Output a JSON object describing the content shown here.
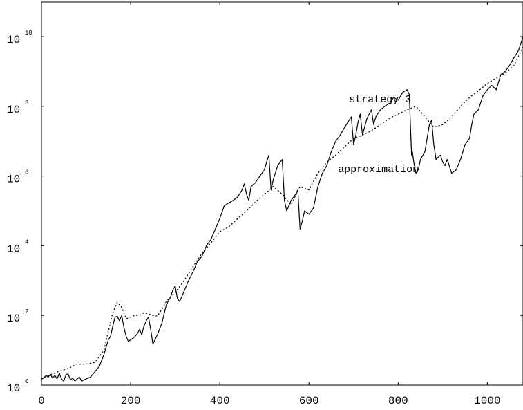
{
  "chart_data": {
    "type": "line",
    "title": "",
    "xlabel": "",
    "ylabel": "",
    "xlim": [
      0,
      1080
    ],
    "ylim": [
      1,
      10000000000
    ],
    "y_scale": "log",
    "grid": false,
    "x_ticks": [
      {
        "value": 0,
        "label": "0"
      },
      {
        "value": 200,
        "label": "200"
      },
      {
        "value": 400,
        "label": "400"
      },
      {
        "value": 600,
        "label": "600"
      },
      {
        "value": 800,
        "label": "800"
      },
      {
        "value": 1000,
        "label": "1000"
      }
    ],
    "y_ticks": [
      {
        "value": 1,
        "base": "10",
        "exp": "0"
      },
      {
        "value": 100,
        "base": "10",
        "exp": "2"
      },
      {
        "value": 10000,
        "base": "10",
        "exp": "4"
      },
      {
        "value": 1000000,
        "base": "10",
        "exp": "6"
      },
      {
        "value": 100000000,
        "base": "10",
        "exp": "8"
      },
      {
        "value": 10000000000,
        "base": "10",
        "exp": "10"
      }
    ],
    "annotations": [
      {
        "text": "strategy 3",
        "x": 690,
        "y": 130000000
      },
      {
        "text": "approximation",
        "x": 665,
        "y": 1300000
      }
    ],
    "series": [
      {
        "label_ref": "strategy 3",
        "style": "solid",
        "x": [
          0,
          5,
          10,
          15,
          20,
          25,
          30,
          35,
          40,
          45,
          50,
          55,
          60,
          65,
          70,
          75,
          80,
          85,
          90,
          95,
          100,
          110,
          120,
          130,
          140,
          150,
          155,
          160,
          165,
          170,
          175,
          180,
          185,
          190,
          195,
          200,
          205,
          210,
          215,
          220,
          225,
          230,
          235,
          240,
          245,
          250,
          260,
          270,
          280,
          290,
          295,
          300,
          305,
          310,
          320,
          330,
          340,
          350,
          360,
          370,
          380,
          390,
          400,
          410,
          420,
          430,
          440,
          450,
          455,
          460,
          465,
          470,
          480,
          490,
          500,
          505,
          510,
          515,
          520,
          530,
          540,
          545,
          550,
          560,
          570,
          575,
          580,
          585,
          590,
          600,
          610,
          620,
          630,
          640,
          650,
          660,
          670,
          680,
          690,
          695,
          700,
          705,
          710,
          715,
          720,
          730,
          740,
          745,
          750,
          760,
          770,
          780,
          790,
          800,
          810,
          820,
          825,
          830,
          832,
          835,
          840,
          845,
          850,
          860,
          870,
          875,
          880,
          885,
          890,
          895,
          900,
          905,
          910,
          920,
          930,
          940,
          950,
          960,
          965,
          970,
          980,
          990,
          1000,
          1010,
          1020,
          1030,
          1040,
          1050,
          1060,
          1070,
          1080
        ],
        "y": [
          1.5,
          1.6,
          1.9,
          1.7,
          2.0,
          1.6,
          1.9,
          1.5,
          2.2,
          1.5,
          1.3,
          2.0,
          2.1,
          1.4,
          1.6,
          1.3,
          1.5,
          1.7,
          1.3,
          1.4,
          1.5,
          1.7,
          2.4,
          3.5,
          7.5,
          20,
          25,
          50,
          90,
          95,
          70,
          100,
          45,
          25,
          18,
          20,
          22,
          25,
          30,
          40,
          28,
          50,
          70,
          90,
          40,
          15,
          28,
          60,
          200,
          350,
          550,
          700,
          300,
          250,
          500,
          1000,
          1800,
          3500,
          5000,
          10000,
          15000,
          30000,
          60000,
          140000,
          170000,
          200000,
          250000,
          400000,
          600000,
          300000,
          200000,
          500000,
          650000,
          1000000,
          1500000,
          2500000,
          4000000,
          400000,
          800000,
          2000000,
          3000000,
          200000,
          100000,
          200000,
          300000,
          400000,
          30000,
          50000,
          100000,
          80000,
          120000,
          500000,
          1200000,
          2000000,
          5000000,
          10000000,
          15000000,
          25000000,
          40000000,
          50000000,
          8000000,
          15000000,
          35000000,
          60000000,
          15000000,
          45000000,
          80000000,
          30000000,
          50000000,
          80000000,
          100000000,
          120000000,
          180000000,
          150000000,
          250000000,
          300000000,
          220000000,
          4000000,
          5000000,
          2500000,
          1200000,
          1500000,
          3000000,
          5000000,
          30000000,
          40000000,
          8000000,
          3000000,
          3500000,
          4000000,
          2500000,
          2000000,
          3000000,
          1200000,
          1500000,
          3000000,
          8000000,
          12000000,
          30000000,
          60000000,
          80000000,
          200000000,
          300000000,
          400000000,
          300000000,
          800000000,
          1000000000,
          1500000000,
          2500000000,
          4000000000,
          10000000000
        ]
      },
      {
        "label_ref": "approximation",
        "style": "dotted",
        "x": [
          0,
          20,
          40,
          60,
          70,
          80,
          100,
          120,
          140,
          160,
          170,
          180,
          190,
          200,
          210,
          220,
          230,
          240,
          250,
          260,
          270,
          280,
          290,
          300,
          320,
          340,
          360,
          380,
          400,
          420,
          440,
          460,
          480,
          500,
          520,
          540,
          560,
          580,
          600,
          620,
          640,
          660,
          680,
          700,
          720,
          740,
          760,
          780,
          800,
          820,
          840,
          860,
          880,
          900,
          920,
          940,
          960,
          980,
          1000,
          1020,
          1040,
          1060,
          1080
        ],
        "y": [
          1.5,
          2.0,
          2.5,
          3.0,
          3.5,
          4.0,
          4.0,
          4.5,
          10,
          120,
          240,
          170,
          80,
          90,
          100,
          100,
          120,
          110,
          100,
          95,
          150,
          250,
          350,
          450,
          1000,
          2500,
          6000,
          12000,
          25000,
          35000,
          60000,
          100000,
          180000,
          300000,
          500000,
          300000,
          150000,
          500000,
          400000,
          1200000,
          2500000,
          4000000,
          7000000,
          12000000,
          15000000,
          20000000,
          30000000,
          45000000,
          60000000,
          80000000,
          100000000,
          50000000,
          25000000,
          30000000,
          50000000,
          100000000,
          180000000,
          280000000,
          450000000,
          650000000,
          900000000,
          1500000000,
          5000000000
        ]
      }
    ]
  }
}
